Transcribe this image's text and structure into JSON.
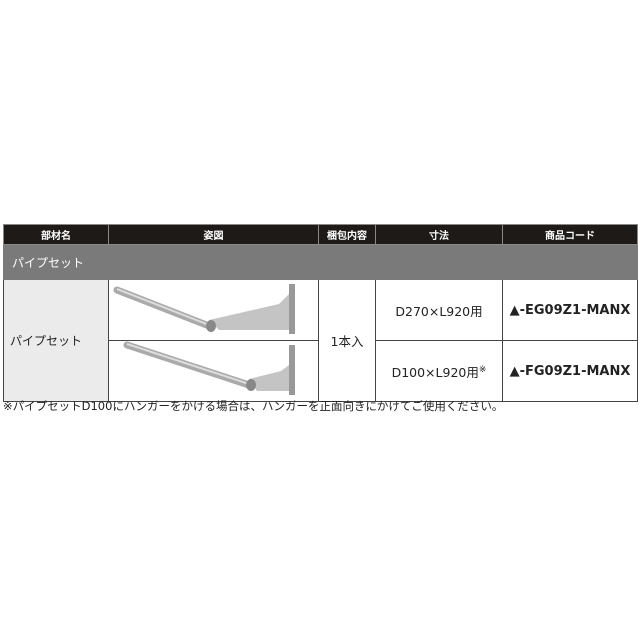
{
  "table": {
    "headers": [
      "部材名",
      "姿図",
      "梱包内容",
      "寸法",
      "商品コード"
    ],
    "section_label": "パイプセット",
    "item_name": "パイプセット",
    "package": "1本入",
    "rows": [
      {
        "size": "D270×L920用",
        "size_mark": "",
        "code": "▲-EG09Z1-MANX"
      },
      {
        "size": "D100×L920用",
        "size_mark": "※",
        "code": "▲-FG09Z1-MANX"
      }
    ]
  },
  "footnote": "※パイプセットD100にハンガーをかける場合は、ハンガーを正面向きにかけてご使用ください。",
  "colors": {
    "header_bg": "#1e1a17",
    "section_bg": "#7a7a7a",
    "name_bg": "#ebebeb"
  }
}
